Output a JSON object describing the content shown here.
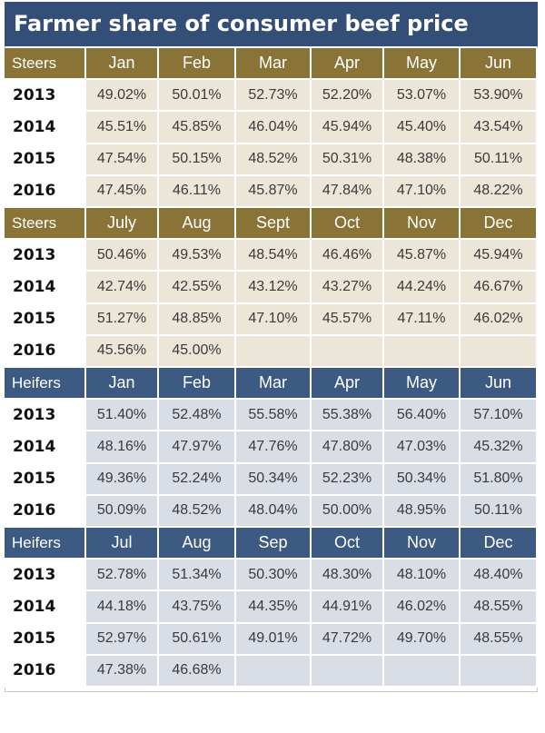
{
  "title": "Farmer share of consumer beef price",
  "colors": {
    "title_bg": "#334f77",
    "steers_header_bg": "#8a7336",
    "steers_cell_bg": "#ece6d8",
    "heifers_header_bg": "#3d5a82",
    "heifers_cell_bg": "#d9dde5",
    "year_bg": "#ffffff"
  },
  "chart_data": {
    "type": "table",
    "sections": [
      {
        "group": "Steers",
        "theme": "steers",
        "months": [
          "Jan",
          "Feb",
          "Mar",
          "Apr",
          "May",
          "Jun"
        ],
        "rows": [
          {
            "year": "2013",
            "values": [
              "49.02%",
              "50.01%",
              "52.73%",
              "52.20%",
              "53.07%",
              "53.90%"
            ]
          },
          {
            "year": "2014",
            "values": [
              "45.51%",
              "45.85%",
              "46.04%",
              "45.94%",
              "45.40%",
              "43.54%"
            ]
          },
          {
            "year": "2015",
            "values": [
              "47.54%",
              "50.15%",
              "48.52%",
              "50.31%",
              "48.38%",
              "50.11%"
            ]
          },
          {
            "year": "2016",
            "values": [
              "47.45%",
              "46.11%",
              "45.87%",
              "47.84%",
              "47.10%",
              "48.22%"
            ]
          }
        ]
      },
      {
        "group": "Steers",
        "theme": "steers",
        "months": [
          "July",
          "Aug",
          "Sept",
          "Oct",
          "Nov",
          "Dec"
        ],
        "rows": [
          {
            "year": "2013",
            "values": [
              "50.46%",
              "49.53%",
              "48.54%",
              "46.46%",
              "45.87%",
              "45.94%"
            ]
          },
          {
            "year": "2014",
            "values": [
              "42.74%",
              "42.55%",
              "43.12%",
              "43.27%",
              "44.24%",
              "46.67%"
            ]
          },
          {
            "year": "2015",
            "values": [
              "51.27%",
              "48.85%",
              "47.10%",
              "45.57%",
              "47.11%",
              "46.02%"
            ]
          },
          {
            "year": "2016",
            "values": [
              "45.56%",
              "45.00%",
              "",
              "",
              "",
              ""
            ]
          }
        ]
      },
      {
        "group": "Heifers",
        "theme": "heifers",
        "months": [
          "Jan",
          "Feb",
          "Mar",
          "Apr",
          "May",
          "Jun"
        ],
        "rows": [
          {
            "year": "2013",
            "values": [
              "51.40%",
              "52.48%",
              "55.58%",
              "55.38%",
              "56.40%",
              "57.10%"
            ]
          },
          {
            "year": "2014",
            "values": [
              "48.16%",
              "47.97%",
              "47.76%",
              "47.80%",
              "47.03%",
              "45.32%"
            ]
          },
          {
            "year": "2015",
            "values": [
              "49.36%",
              "52.24%",
              "50.34%",
              "52.23%",
              "50.34%",
              "51.80%"
            ]
          },
          {
            "year": "2016",
            "values": [
              "50.09%",
              "48.52%",
              "48.04%",
              "50.00%",
              "48.95%",
              "50.11%"
            ]
          }
        ]
      },
      {
        "group": "Heifers",
        "theme": "heifers",
        "months": [
          "Jul",
          "Aug",
          "Sep",
          "Oct",
          "Nov",
          "Dec"
        ],
        "rows": [
          {
            "year": "2013",
            "values": [
              "52.78%",
              "51.34%",
              "50.30%",
              "48.30%",
              "48.10%",
              "48.40%"
            ]
          },
          {
            "year": "2014",
            "values": [
              "44.18%",
              "43.75%",
              "44.35%",
              "44.91%",
              "46.02%",
              "48.55%"
            ]
          },
          {
            "year": "2015",
            "values": [
              "52.97%",
              "50.61%",
              "49.01%",
              "47.72%",
              "49.70%",
              "48.55%"
            ]
          },
          {
            "year": "2016",
            "values": [
              "47.38%",
              "46.68%",
              "",
              "",
              "",
              ""
            ]
          }
        ]
      }
    ]
  }
}
